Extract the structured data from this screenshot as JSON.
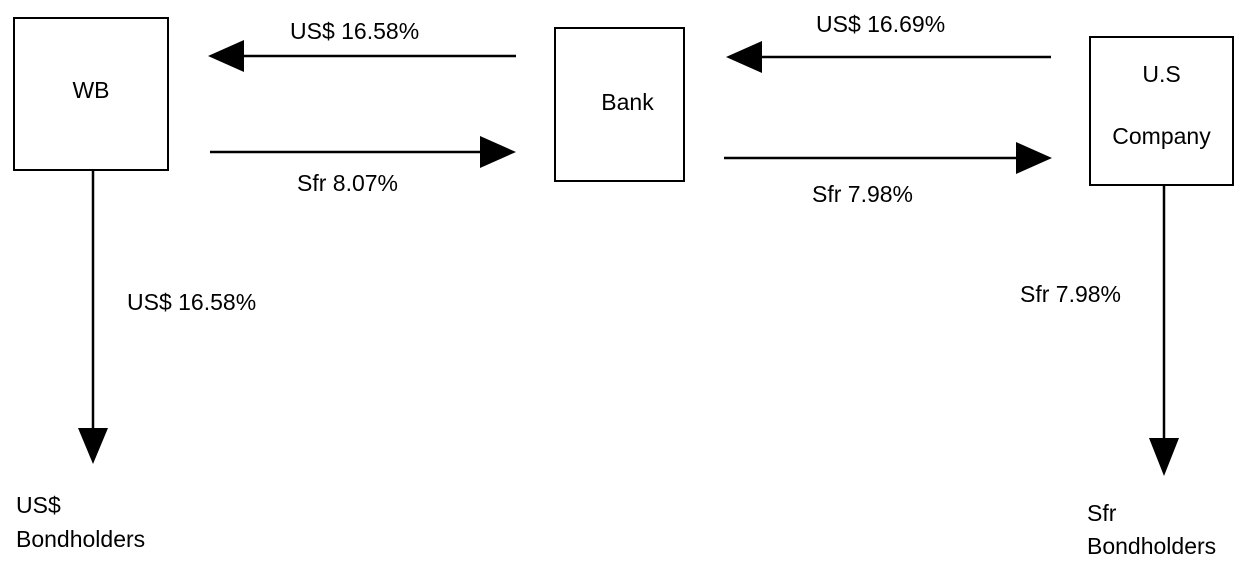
{
  "nodes": {
    "wb": {
      "label": "WB"
    },
    "bank": {
      "label": "Bank"
    },
    "us_company": {
      "label_line1": "U.S",
      "label_line2": "Company"
    },
    "us_bondholders": {
      "label_line1": "US$",
      "label_line2": "Bondholders"
    },
    "sfr_bondholders": {
      "label_line1": "Sfr",
      "label_line2": "Bondholders"
    }
  },
  "flows": {
    "bank_to_wb": "US$ 16.58%",
    "wb_to_bank": "Sfr 8.07%",
    "company_to_bank": "US$ 16.69%",
    "bank_to_company": "Sfr 7.98%",
    "wb_to_bondholders": "US$ 16.58%",
    "company_to_bondholders": "Sfr 7.98%"
  }
}
